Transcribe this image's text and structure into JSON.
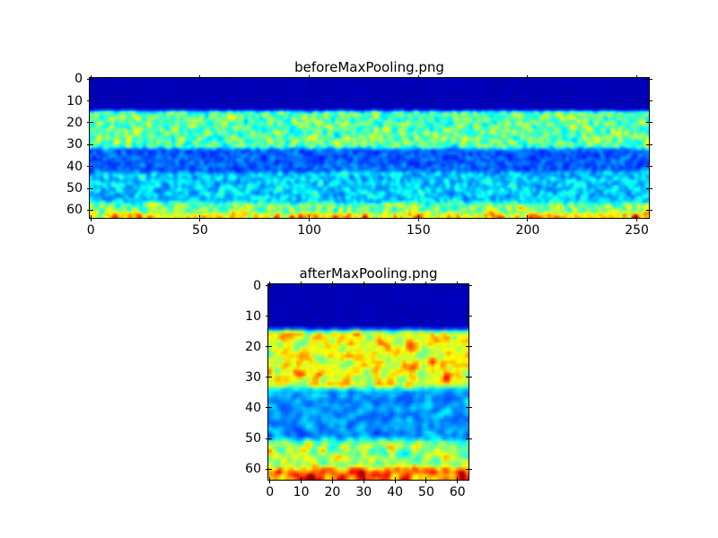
{
  "figure": {
    "background_color": "#ffffff",
    "frame_color": "#000000",
    "text_color": "#000000"
  },
  "chart_data": [
    {
      "type": "heatmap",
      "title": "beforeMaxPooling.png",
      "colormap": "jet",
      "cols": 256,
      "rows": 64,
      "x_range": [
        0,
        255
      ],
      "y_range": [
        0,
        63
      ],
      "x_ticks": [
        0,
        50,
        100,
        150,
        200,
        250
      ],
      "y_ticks": [
        0,
        10,
        20,
        30,
        40,
        50,
        60
      ],
      "grid": false,
      "legend": false,
      "seed": 1337,
      "background_value_color": "#000080",
      "bands": [
        {
          "rows": [
            0,
            15
          ],
          "base": 0.04,
          "amp": 0.04,
          "hot": 0
        },
        {
          "rows": [
            15,
            32
          ],
          "base": 0.27,
          "amp": 0.52,
          "hot": 0.02
        },
        {
          "rows": [
            32,
            43
          ],
          "base": 0.12,
          "amp": 0.26,
          "hot": 0
        },
        {
          "rows": [
            43,
            57
          ],
          "base": 0.18,
          "amp": 0.4,
          "hot": 0.006
        },
        {
          "rows": [
            57,
            62
          ],
          "base": 0.28,
          "amp": 0.55,
          "hot": 0.03
        },
        {
          "rows": [
            62,
            64
          ],
          "base": 0.42,
          "amp": 0.58,
          "hot": 0.09
        }
      ]
    },
    {
      "type": "heatmap",
      "title": "afterMaxPooling.png",
      "colormap": "jet",
      "cols": 64,
      "rows": 64,
      "x_range": [
        0,
        63
      ],
      "y_range": [
        0,
        63
      ],
      "x_ticks": [
        0,
        10,
        20,
        30,
        40,
        50,
        60
      ],
      "y_ticks": [
        0,
        10,
        20,
        30,
        40,
        50,
        60
      ],
      "grid": false,
      "legend": false,
      "seed": 7331,
      "background_value_color": "#000080",
      "bands": [
        {
          "rows": [
            0,
            15
          ],
          "base": 0.04,
          "amp": 0.04,
          "hot": 0
        },
        {
          "rows": [
            15,
            34
          ],
          "base": 0.4,
          "amp": 0.55,
          "hot": 0.05
        },
        {
          "rows": [
            34,
            51
          ],
          "base": 0.15,
          "amp": 0.32,
          "hot": 0
        },
        {
          "rows": [
            51,
            60
          ],
          "base": 0.3,
          "amp": 0.55,
          "hot": 0.04
        },
        {
          "rows": [
            60,
            64
          ],
          "base": 0.52,
          "amp": 0.55,
          "hot": 0.13
        }
      ]
    }
  ]
}
